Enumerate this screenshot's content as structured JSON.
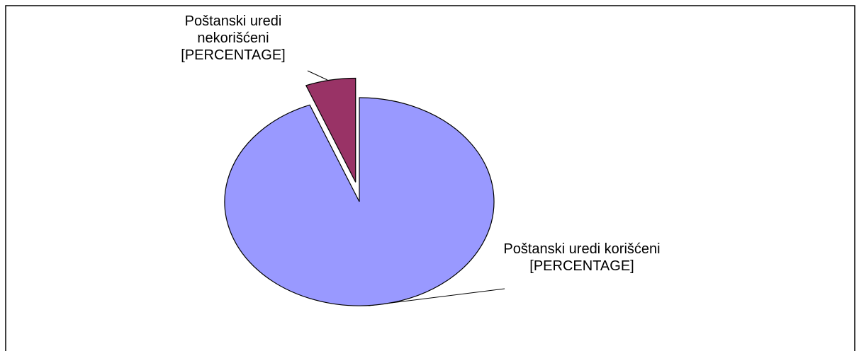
{
  "chart_data": {
    "type": "pie",
    "categories": [
      "Poštanski uredi korišćeni",
      "Poštanski uredi nekorišćeni"
    ],
    "values": [
      94,
      6
    ],
    "value_labels": [
      "[PERCENTAGE]",
      "[PERCENTAGE]"
    ],
    "colors": [
      "#9999ff",
      "#993366"
    ],
    "exploded": [
      false,
      true
    ]
  }
}
